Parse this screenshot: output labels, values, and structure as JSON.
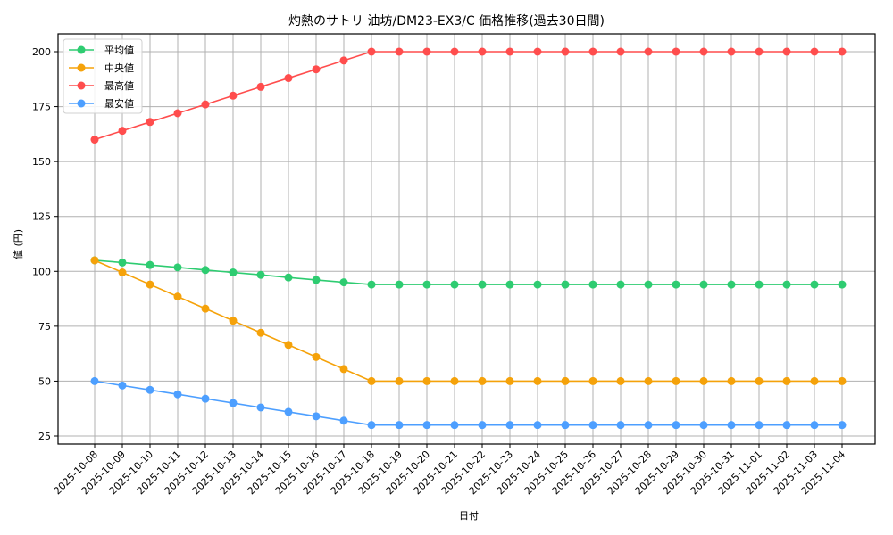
{
  "chart_data": {
    "type": "line",
    "title": "灼熱のサトリ 油坊/DM23-EX3/C 価格推移(過去30日間)",
    "xlabel": "日付",
    "ylabel": "値 (円)",
    "ylim": [
      22,
      208
    ],
    "yticks": [
      25,
      50,
      75,
      100,
      125,
      150,
      175,
      200
    ],
    "grid": true,
    "legend_position": "upper left",
    "x": [
      "2025-10-08",
      "2025-10-09",
      "2025-10-10",
      "2025-10-11",
      "2025-10-12",
      "2025-10-13",
      "2025-10-14",
      "2025-10-15",
      "2025-10-16",
      "2025-10-17",
      "2025-10-18",
      "2025-10-19",
      "2025-10-20",
      "2025-10-21",
      "2025-10-22",
      "2025-10-23",
      "2025-10-24",
      "2025-10-25",
      "2025-10-26",
      "2025-10-27",
      "2025-10-28",
      "2025-10-29",
      "2025-10-30",
      "2025-10-31",
      "2025-11-01",
      "2025-11-02",
      "2025-11-03",
      "2025-11-04"
    ],
    "series": [
      {
        "name": "平均値",
        "color": "#2ecc71",
        "values": [
          105,
          104,
          102.9,
          101.8,
          100.6,
          99.5,
          98.4,
          97.2,
          96.1,
          95,
          94,
          94,
          94,
          94,
          94,
          94,
          94,
          94,
          94,
          94,
          94,
          94,
          94,
          94,
          94,
          94,
          94,
          94
        ]
      },
      {
        "name": "中央値",
        "color": "#f5a20a",
        "values": [
          105,
          99.5,
          94,
          88.5,
          83,
          77.5,
          72,
          66.5,
          61,
          55.5,
          50,
          50,
          50,
          50,
          50,
          50,
          50,
          50,
          50,
          50,
          50,
          50,
          50,
          50,
          50,
          50,
          50,
          50
        ]
      },
      {
        "name": "最高値",
        "color": "#ff4d4d",
        "values": [
          160,
          164,
          168,
          172,
          176,
          180,
          184,
          188,
          192,
          196,
          200,
          200,
          200,
          200,
          200,
          200,
          200,
          200,
          200,
          200,
          200,
          200,
          200,
          200,
          200,
          200,
          200,
          200
        ]
      },
      {
        "name": "最安値",
        "color": "#4d9fff",
        "values": [
          50,
          48,
          46,
          44,
          42,
          40,
          38,
          36,
          34,
          32,
          30,
          30,
          30,
          30,
          30,
          30,
          30,
          30,
          30,
          30,
          30,
          30,
          30,
          30,
          30,
          30,
          30,
          30
        ]
      }
    ]
  }
}
